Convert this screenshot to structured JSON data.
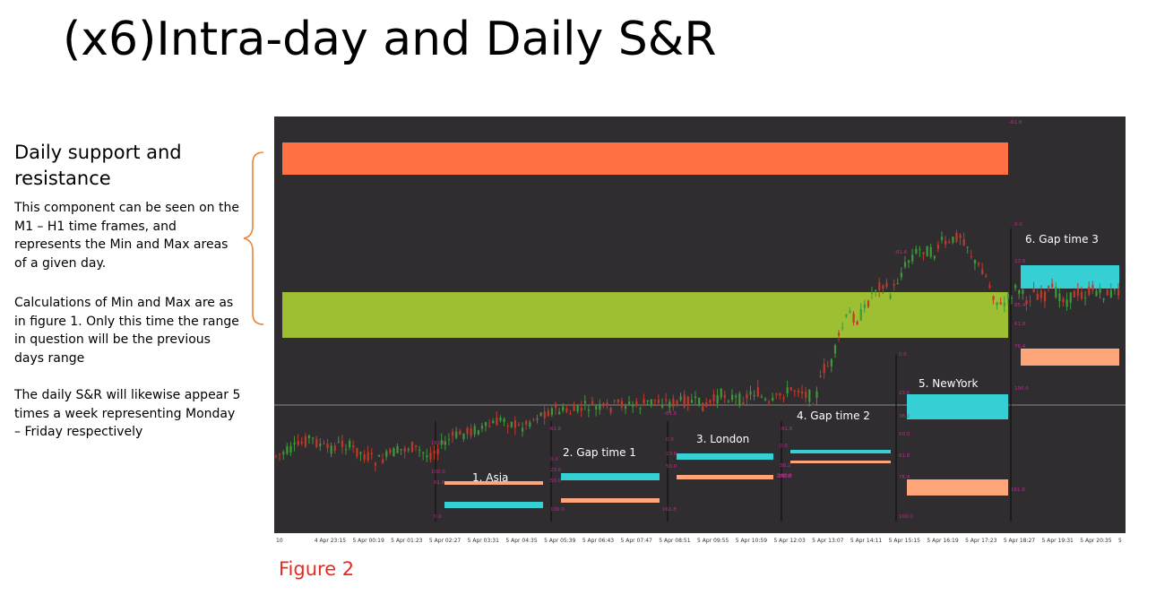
{
  "slide": {
    "title": "(x6)Intra-day and Daily S&R",
    "heading": "Daily support and resistance",
    "paragraph1": "This component can be seen on the M1 – H1 time frames, and represents the Min and Max areas of a given day.",
    "paragraph2": "Calculations of Min and Max are as in figure 1.  Only this time the range in question will be the previous days range",
    "paragraph3": "The daily S&R will likewise appear 5 times a week representing Monday – Friday respectively",
    "caption": "Figure 2"
  },
  "colors": {
    "chart_bg": "#2f2d30",
    "resistance": "#ff7043",
    "support": "#9dbf31",
    "cyan": "#36cfd3",
    "salmon": "#ffa57a",
    "candle_up": "#3d9a3a",
    "candle_down": "#c0392b",
    "fib_label": "#c0278f",
    "brace": "#e8843a",
    "caption": "#e8291c"
  },
  "chart_data": {
    "type": "line",
    "description_free": true,
    "x_ticks": [
      "10",
      "4 Apr 23:15",
      "5 Apr 00:19",
      "5 Apr 01:23",
      "5 Apr 02:27",
      "5 Apr 03:31",
      "5 Apr 04:35",
      "5 Apr 05:39",
      "5 Apr 06:43",
      "5 Apr 07:47",
      "5 Apr 08:51",
      "5 Apr 09:55",
      "5 Apr 10:59",
      "5 Apr 12:03",
      "5 Apr 13:07",
      "5 Apr 14:11",
      "5 Apr 15:15",
      "5 Apr 16:19",
      "5 Apr 17:23",
      "5 Apr 18:27",
      "5 Apr 19:31",
      "5 Apr 20:35",
      "5"
    ],
    "price_path": [
      [
        0,
        0.88
      ],
      [
        0.02,
        0.86
      ],
      [
        0.04,
        0.82
      ],
      [
        0.06,
        0.86
      ],
      [
        0.08,
        0.84
      ],
      [
        0.1,
        0.87
      ],
      [
        0.12,
        0.9
      ],
      [
        0.14,
        0.87
      ],
      [
        0.16,
        0.85
      ],
      [
        0.18,
        0.88
      ],
      [
        0.19,
        0.86
      ],
      [
        0.21,
        0.82
      ],
      [
        0.23,
        0.8
      ],
      [
        0.25,
        0.79
      ],
      [
        0.27,
        0.76
      ],
      [
        0.29,
        0.79
      ],
      [
        0.31,
        0.75
      ],
      [
        0.33,
        0.73
      ],
      [
        0.35,
        0.74
      ],
      [
        0.37,
        0.72
      ],
      [
        0.39,
        0.73
      ],
      [
        0.41,
        0.71
      ],
      [
        0.43,
        0.72
      ],
      [
        0.45,
        0.7
      ],
      [
        0.47,
        0.71
      ],
      [
        0.49,
        0.7
      ],
      [
        0.51,
        0.72
      ],
      [
        0.53,
        0.68
      ],
      [
        0.55,
        0.7
      ],
      [
        0.57,
        0.67
      ],
      [
        0.585,
        0.72
      ],
      [
        0.6,
        0.68
      ],
      [
        0.62,
        0.66
      ],
      [
        0.64,
        0.7
      ],
      [
        0.65,
        0.6
      ],
      [
        0.66,
        0.58
      ],
      [
        0.67,
        0.48
      ],
      [
        0.68,
        0.42
      ],
      [
        0.69,
        0.44
      ],
      [
        0.7,
        0.4
      ],
      [
        0.71,
        0.34
      ],
      [
        0.72,
        0.32
      ],
      [
        0.73,
        0.36
      ],
      [
        0.74,
        0.3
      ],
      [
        0.75,
        0.25
      ],
      [
        0.76,
        0.22
      ],
      [
        0.77,
        0.21
      ],
      [
        0.78,
        0.23
      ],
      [
        0.79,
        0.19
      ],
      [
        0.8,
        0.2
      ],
      [
        0.81,
        0.16
      ],
      [
        0.82,
        0.19
      ],
      [
        0.83,
        0.26
      ],
      [
        0.84,
        0.28
      ],
      [
        0.85,
        0.35
      ],
      [
        0.86,
        0.4
      ],
      [
        0.87,
        0.37
      ],
      [
        0.88,
        0.33
      ],
      [
        0.89,
        0.38
      ],
      [
        0.9,
        0.35
      ],
      [
        0.91,
        0.37
      ],
      [
        0.92,
        0.34
      ],
      [
        0.93,
        0.36
      ],
      [
        0.94,
        0.38
      ],
      [
        0.95,
        0.35
      ],
      [
        0.96,
        0.36
      ],
      [
        0.97,
        0.34
      ],
      [
        0.98,
        0.36
      ],
      [
        1.0,
        0.35
      ]
    ],
    "annotations": [
      "1. Asia",
      "2. Gap time 1",
      "3. London",
      "4. Gap time 2",
      "5. NewYork",
      "6. Gap time 3"
    ],
    "fib_labels": [
      "-61.8",
      "0.0",
      "23.6",
      "38.2",
      "50.0",
      "61.8",
      "76.4",
      "85.4",
      "100.0",
      "161.8"
    ]
  }
}
